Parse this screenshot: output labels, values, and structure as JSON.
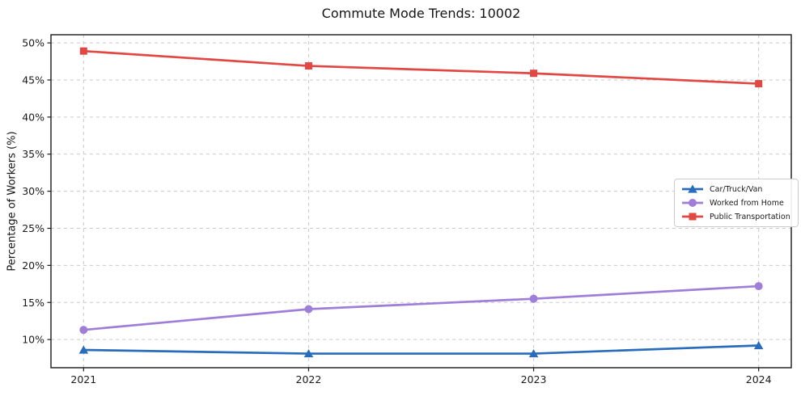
{
  "chart_data": {
    "type": "line",
    "title": "Commute Mode Trends: 10002",
    "xlabel": "",
    "ylabel": "Percentage of Workers (%)",
    "x": [
      2021,
      2022,
      2023,
      2024
    ],
    "xtick_labels": [
      "2021",
      "2022",
      "2023",
      "2024"
    ],
    "yticks": [
      10,
      15,
      20,
      25,
      30,
      35,
      40,
      45,
      50
    ],
    "ytick_labels": [
      "10%",
      "15%",
      "20%",
      "25%",
      "30%",
      "35%",
      "40%",
      "45%",
      "50%"
    ],
    "xlim": [
      2020.855,
      2024.145
    ],
    "ylim": [
      6.2,
      51.1
    ],
    "grid": true,
    "grid_style": "dashed",
    "legend_position": "center-right",
    "background_color": "#ffffff",
    "series": [
      {
        "name": "Car/Truck/Van",
        "color": "#2a6cbc",
        "marker": "triangle",
        "values": [
          8.6,
          8.1,
          8.1,
          9.2
        ]
      },
      {
        "name": "Worked from Home",
        "color": "#9e7ed8",
        "marker": "circle",
        "values": [
          11.3,
          14.1,
          15.5,
          17.2
        ]
      },
      {
        "name": "Public Transportation",
        "color": "#e14743",
        "marker": "square",
        "values": [
          48.9,
          46.9,
          45.9,
          44.5
        ]
      }
    ]
  }
}
